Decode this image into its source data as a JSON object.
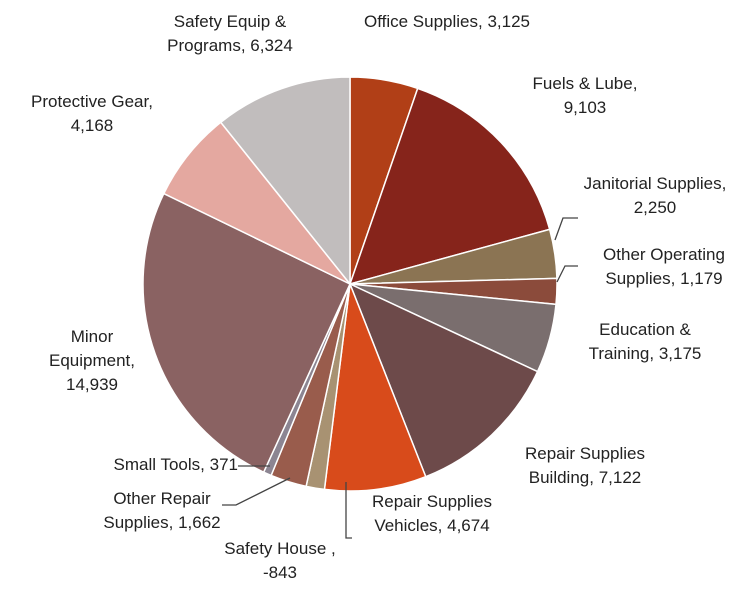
{
  "chart_data": {
    "type": "pie",
    "categories": [
      "Office Supplies,",
      "Fuels & Lube,",
      "Janitorial Supplies,",
      "Other Operating Supplies,",
      "Education & Training,",
      "Repair Supplies Building,",
      "Repair Supplies Vehicles,",
      "Safety House ,",
      "Other Repair Supplies,",
      "Small Tools,",
      "Minor Equipment,",
      "Protective Gear,",
      "Safety Equip & Programs,"
    ],
    "values": [
      3125,
      9103,
      2250,
      1179,
      3175,
      7122,
      4674,
      -843,
      1662,
      371,
      14939,
      4168,
      6324
    ],
    "value_labels": [
      "3,125",
      "9,103",
      "2,250",
      "1,179",
      "3,175",
      "7,122",
      "4,674",
      "-843",
      "1,662",
      "371",
      "14,939",
      "4,168",
      "6,324"
    ],
    "colors": [
      "#b13f17",
      "#86241b",
      "#8b7453",
      "#8b4b3b",
      "#7a6e6e",
      "#6d4a4a",
      "#d84b1b",
      "#a89272",
      "#995c4c",
      "#8c8592",
      "#8a6262",
      "#e4a8a0",
      "#c1bdbd"
    ]
  }
}
